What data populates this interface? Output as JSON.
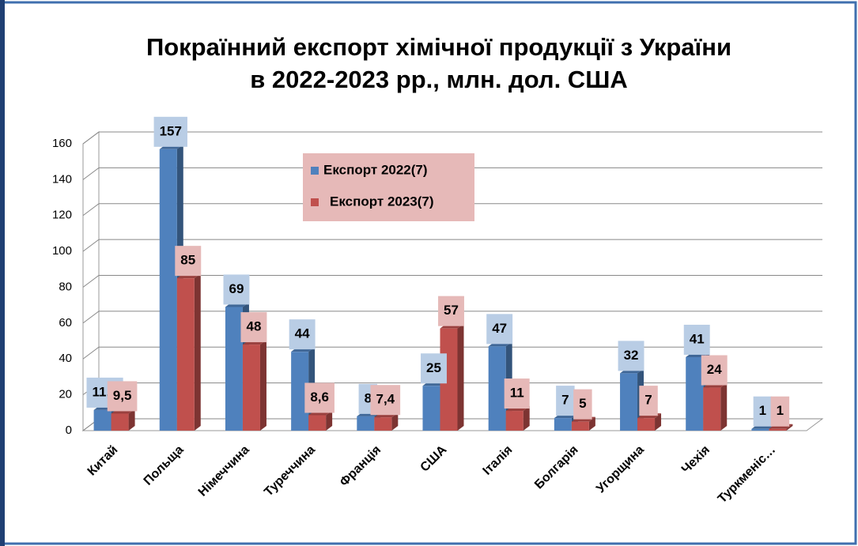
{
  "chart_data": {
    "type": "bar",
    "title": [
      "Покраїнний експорт хімічної продукції з України",
      "в 2022-2023 рр., млн. дол. США"
    ],
    "categories": [
      "Китай",
      "Польща",
      "Німеччина",
      "Туреччина",
      "Франція",
      "США",
      "Італія",
      "Болгарія",
      "Угорщина",
      "Чехія",
      "Туркменіс…"
    ],
    "series": [
      {
        "name": "Експорт 2022(7)",
        "color": "#4f81bd",
        "values": [
          11.5,
          157,
          69,
          44,
          8,
          25,
          47,
          7,
          32,
          41,
          1
        ],
        "value_labels": [
          "11,5",
          "157",
          "69",
          "44",
          "8",
          "25",
          "47",
          "7",
          "32",
          "41",
          "1"
        ]
      },
      {
        "name": "Експорт 2023(7)",
        "color": "#c0504d",
        "values": [
          9.5,
          85,
          48,
          8.6,
          7.4,
          57,
          11,
          5,
          7,
          24,
          1
        ],
        "value_labels": [
          "9,5",
          "85",
          "48",
          "8,6",
          "7,4",
          "57",
          "11",
          "5",
          "7",
          "24",
          "1"
        ]
      }
    ],
    "ylim": [
      0,
      160
    ],
    "yticks": [
      0,
      20,
      40,
      60,
      80,
      100,
      120,
      140,
      160
    ],
    "grid": true
  }
}
